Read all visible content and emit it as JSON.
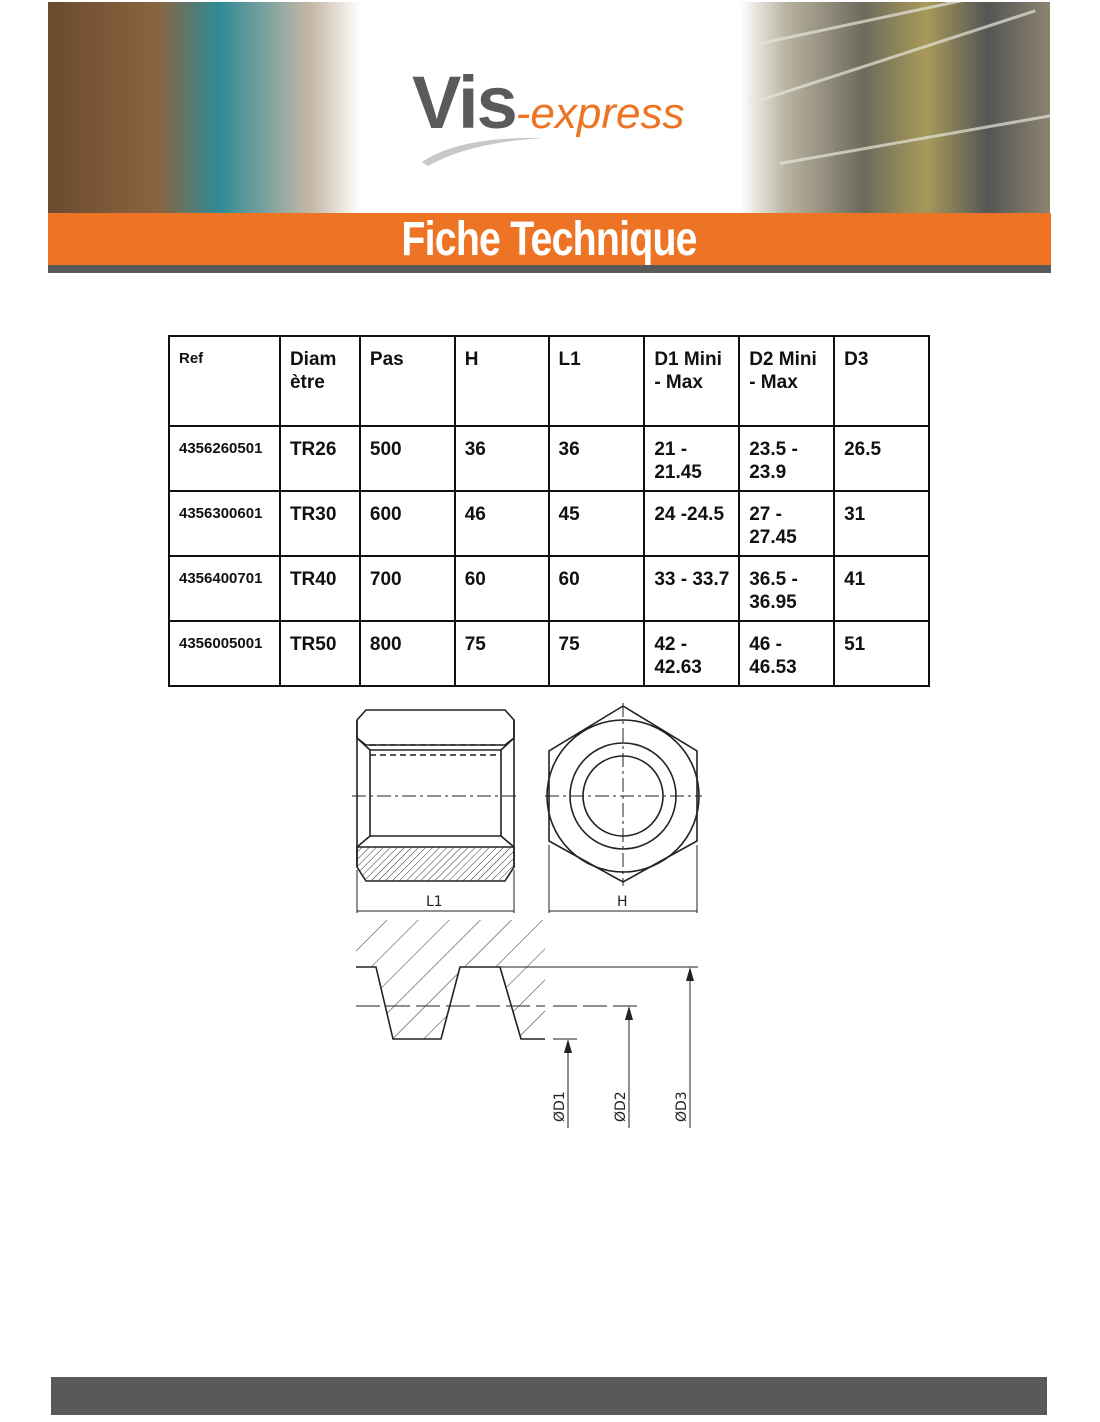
{
  "header": {
    "logo_main": "Vis",
    "logo_accent": "-express",
    "banner_title": "Fiche Technique",
    "brand_orange": "#ec7424",
    "brand_grey": "#59595b"
  },
  "table": {
    "headers": [
      "Ref",
      "Diam ètre",
      "Pas",
      "H",
      "L1",
      "D1 Mini - Max",
      "D2 Mini - Max",
      "D3"
    ],
    "rows": [
      [
        "4356260501",
        "TR26",
        "500",
        "36",
        "36",
        "21 - 21.45",
        "23.5 - 23.9",
        "26.5"
      ],
      [
        "4356300601",
        "TR30",
        "600",
        "46",
        "45",
        "24 -24.5",
        "27 - 27.45",
        "31"
      ],
      [
        "4356400701",
        "TR40",
        "700",
        "60",
        "60",
        "33 - 33.7",
        "36.5 - 36.95",
        "41"
      ],
      [
        "4356005001",
        "TR50",
        "800",
        "75",
        "75",
        "42 - 42.63",
        "46 - 46.53",
        "51"
      ]
    ]
  },
  "diagram": {
    "label_l1": "L1",
    "label_h": "H",
    "label_d1": "ØD1",
    "label_d2": "ØD2",
    "label_d3": "ØD3"
  }
}
